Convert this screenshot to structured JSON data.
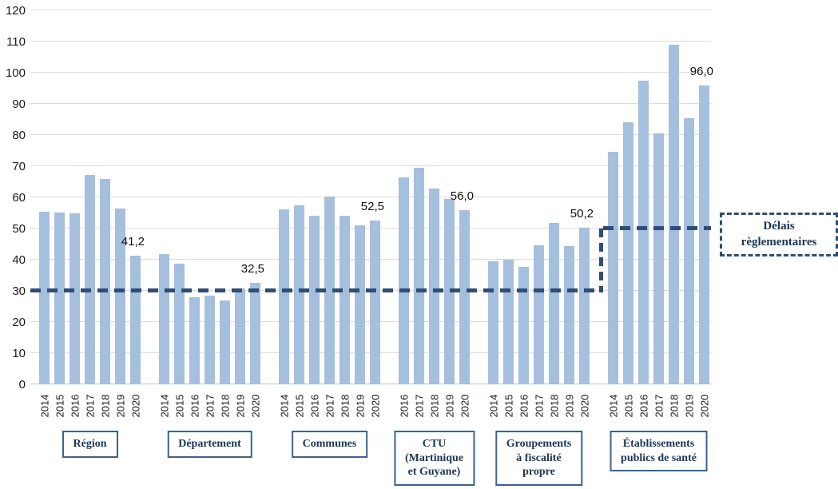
{
  "chart_data": {
    "type": "bar",
    "title": "",
    "xlabel": "",
    "ylabel": "",
    "ylim": [
      0,
      120
    ],
    "ytick_step": 10,
    "grid": true,
    "legend": "none",
    "bar_color": "#a5c0de",
    "reference_line": {
      "label": "Délais règlementaires",
      "label_lines": [
        "Délais",
        "règlementaires"
      ],
      "color": "#2e4d7b",
      "style": "dashed-step",
      "segments": [
        {
          "value": 30,
          "applies_to": [
            "Région",
            "Département",
            "Communes",
            "CTU (Martinique et Guyane)",
            "Groupements à fiscalité propre"
          ]
        },
        {
          "value": 50,
          "applies_to": [
            "Établissements publics de santé"
          ]
        }
      ]
    },
    "groups": [
      {
        "label": "Région",
        "label_lines": [
          "Région"
        ],
        "years": [
          "2014",
          "2015",
          "2016",
          "2017",
          "2018",
          "2019",
          "2020"
        ],
        "values": [
          55.3,
          55.2,
          54.8,
          67.3,
          65.8,
          56.3,
          41.2
        ],
        "callout": "41,2"
      },
      {
        "label": "Département",
        "label_lines": [
          "Département"
        ],
        "years": [
          "2014",
          "2015",
          "2016",
          "2017",
          "2018",
          "2019",
          "2020"
        ],
        "values": [
          41.8,
          38.7,
          28.0,
          28.5,
          27.0,
          30.8,
          32.5
        ],
        "callout": "32,5"
      },
      {
        "label": "Communes",
        "label_lines": [
          "Communes"
        ],
        "years": [
          "2014",
          "2015",
          "2016",
          "2017",
          "2018",
          "2019",
          "2020"
        ],
        "values": [
          56.2,
          57.5,
          54.2,
          60.2,
          54.2,
          51.0,
          52.5
        ],
        "callout": "52,5"
      },
      {
        "label": "CTU (Martinique et Guyane)",
        "label_lines": [
          "CTU",
          "(Martinique",
          "et Guyane)"
        ],
        "years": [
          "2016",
          "2017",
          "2018",
          "2019",
          "2020"
        ],
        "values": [
          66.4,
          69.4,
          62.9,
          59.4,
          56.0
        ],
        "callout": "56,0"
      },
      {
        "label": "Groupements à fiscalité propre",
        "label_lines": [
          "Groupements",
          "à fiscalité",
          "propre"
        ],
        "years": [
          "2014",
          "2015",
          "2016",
          "2017",
          "2018",
          "2019",
          "2020"
        ],
        "values": [
          39.4,
          40.1,
          37.8,
          44.7,
          51.9,
          44.4,
          50.2
        ],
        "callout": "50,2"
      },
      {
        "label": "Établissements publics de santé",
        "label_lines": [
          "Établissements",
          "publics de santé"
        ],
        "years": [
          "2014",
          "2015",
          "2016",
          "2017",
          "2018",
          "2019",
          "2020"
        ],
        "values": [
          74.7,
          84.0,
          97.4,
          80.5,
          109.1,
          85.4,
          96.0
        ],
        "callout": "96,0"
      }
    ]
  }
}
